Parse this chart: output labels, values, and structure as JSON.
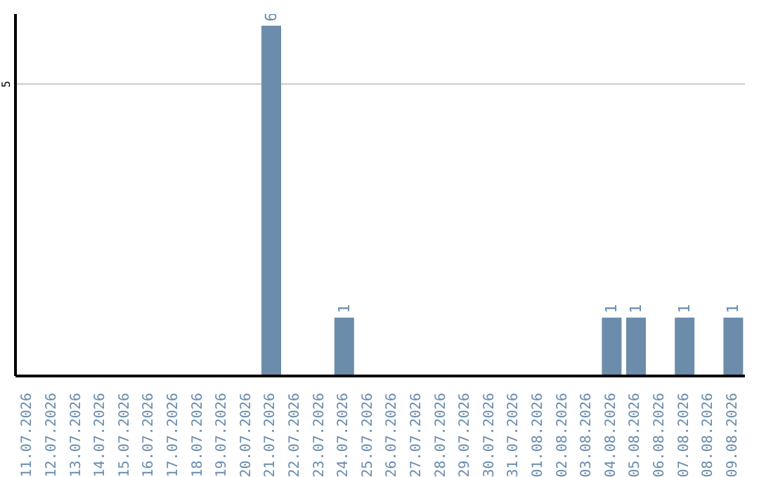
{
  "chart_data": {
    "type": "bar",
    "categories": [
      "11.07.2026",
      "12.07.2026",
      "13.07.2026",
      "14.07.2026",
      "15.07.2026",
      "16.07.2026",
      "17.07.2026",
      "18.07.2026",
      "19.07.2026",
      "20.07.2026",
      "21.07.2026",
      "22.07.2026",
      "23.07.2026",
      "24.07.2026",
      "25.07.2026",
      "26.07.2026",
      "27.07.2026",
      "28.07.2026",
      "29.07.2026",
      "30.07.2026",
      "31.07.2026",
      "01.08.2026",
      "02.08.2026",
      "03.08.2026",
      "04.08.2026",
      "05.08.2026",
      "06.08.2026",
      "07.08.2026",
      "08.08.2026",
      "09.08.2026"
    ],
    "values": [
      0,
      0,
      0,
      0,
      0,
      0,
      0,
      0,
      0,
      0,
      6,
      0,
      0,
      1,
      0,
      0,
      0,
      0,
      0,
      0,
      0,
      0,
      0,
      0,
      1,
      1,
      0,
      1,
      0,
      1
    ],
    "value_labels": [
      null,
      null,
      null,
      null,
      null,
      null,
      null,
      null,
      null,
      null,
      "6",
      null,
      null,
      "1",
      null,
      null,
      null,
      null,
      null,
      null,
      null,
      null,
      null,
      null,
      "1",
      "1",
      null,
      "1",
      null,
      "1"
    ],
    "color": "#6b8cab",
    "ylim": [
      0,
      6.2
    ],
    "yticks": [
      5
    ],
    "grid": "y"
  }
}
